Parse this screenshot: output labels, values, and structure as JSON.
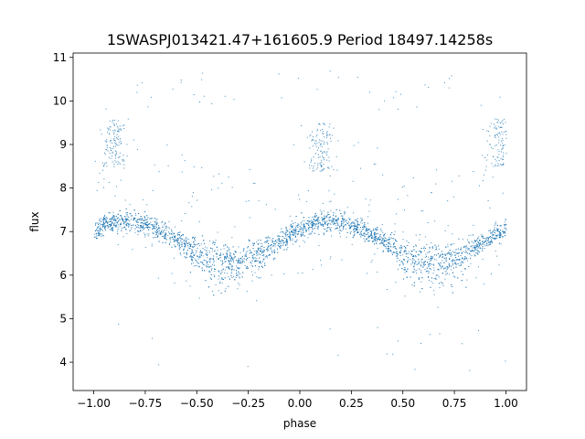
{
  "chart_data": {
    "type": "scatter",
    "title": "1SWASPJ013421.47+161605.9 Period 18497.14258s",
    "xlabel": "phase",
    "ylabel": "flux",
    "xlim": [
      -1.1,
      1.1
    ],
    "ylim": [
      3.35,
      11.1
    ],
    "xticks": [
      -1.0,
      -0.75,
      -0.5,
      -0.25,
      0.0,
      0.25,
      0.5,
      0.75,
      1.0
    ],
    "xtick_labels": [
      "−1.00",
      "−0.75",
      "−0.50",
      "−0.25",
      "0.00",
      "0.25",
      "0.50",
      "0.75",
      "1.00"
    ],
    "yticks": [
      4,
      5,
      6,
      7,
      8,
      9,
      10,
      11
    ],
    "ytick_labels": [
      "4",
      "5",
      "6",
      "7",
      "8",
      "9",
      "10",
      "11"
    ],
    "grid": false,
    "marker_color": "#1f77b4",
    "series": [
      {
        "description": "folded light curve, roughly sinusoidal with one cycle per unit phase",
        "mean_flux": 6.8,
        "amplitude": 0.45,
        "max_phase": 0.15,
        "min_phase": -0.35,
        "phase_range": [
          -1.0,
          1.0
        ],
        "outlier_clusters": [
          {
            "phase_center": -0.9,
            "flux_range": [
              8.5,
              9.6
            ]
          },
          {
            "phase_center": 0.1,
            "flux_range": [
              8.4,
              9.5
            ]
          },
          {
            "phase_center": 0.97,
            "flux_range": [
              8.5,
              9.6
            ]
          }
        ]
      }
    ]
  }
}
